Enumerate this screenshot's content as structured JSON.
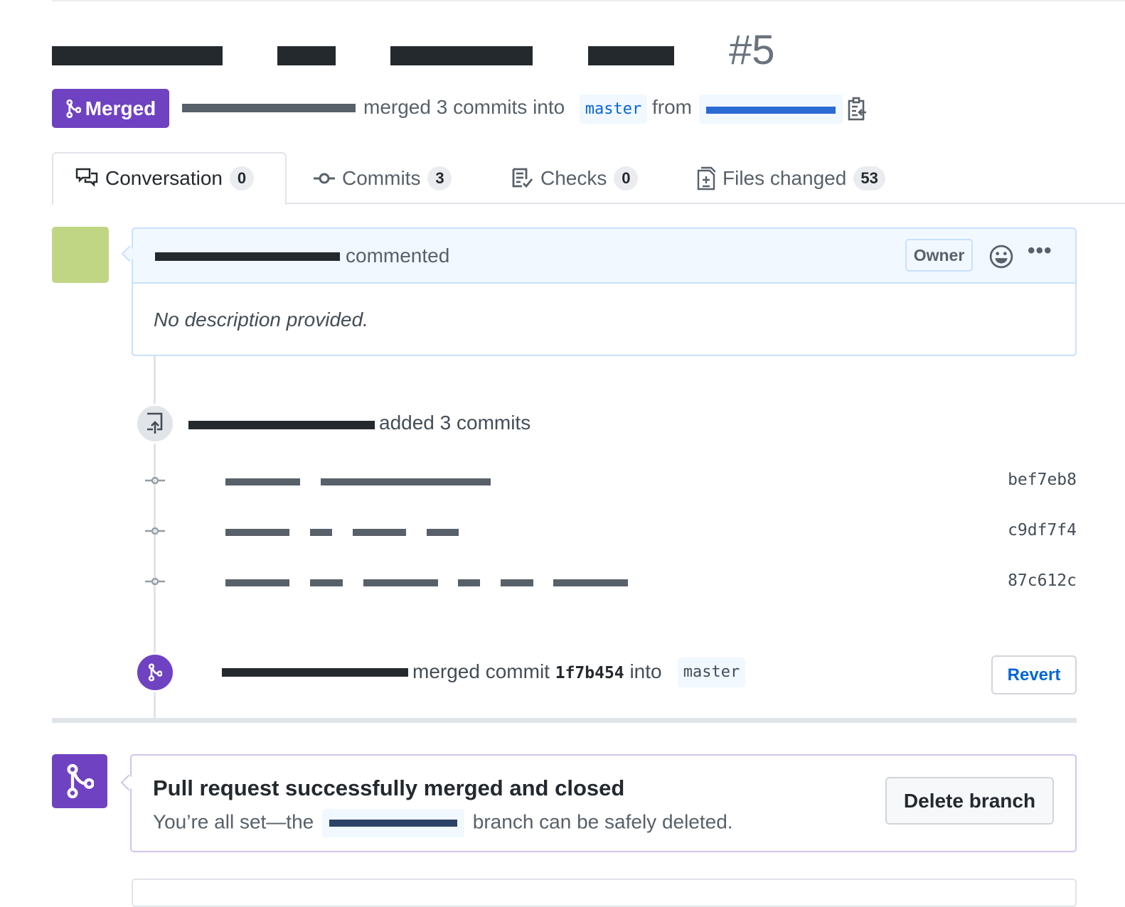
{
  "pr": {
    "number": "#5",
    "state": "Merged",
    "summary": "merged 3 commits into",
    "base_branch": "master",
    "from": "from"
  },
  "tabs": [
    {
      "label": "Conversation",
      "count": "0",
      "icon": "comment-discussion-icon",
      "active": true
    },
    {
      "label": "Commits",
      "count": "3",
      "icon": "git-commit-icon"
    },
    {
      "label": "Checks",
      "count": "0",
      "icon": "checklist-icon"
    },
    {
      "label": "Files changed",
      "count": "53",
      "icon": "file-diff-icon"
    }
  ],
  "comment": {
    "action": "commented",
    "role": "Owner",
    "body": "No description provided."
  },
  "timeline": {
    "push": {
      "action": "added 3 commits"
    },
    "commits": [
      {
        "sha": "bef7eb8"
      },
      {
        "sha": "c9df7f4"
      },
      {
        "sha": "87c612c"
      }
    ],
    "merge": {
      "action": "merged commit",
      "sha": "1f7b454",
      "into": "into",
      "branch": "master",
      "revert_label": "Revert"
    }
  },
  "merge_box": {
    "title": "Pull request successfully merged and closed",
    "text_before": "You’re all set—the",
    "text_after": "branch can be safely deleted.",
    "delete_label": "Delete branch"
  },
  "colors": {
    "merged": "#6f42c1",
    "link": "#0366d6",
    "header_bg": "#f1f8ff"
  }
}
